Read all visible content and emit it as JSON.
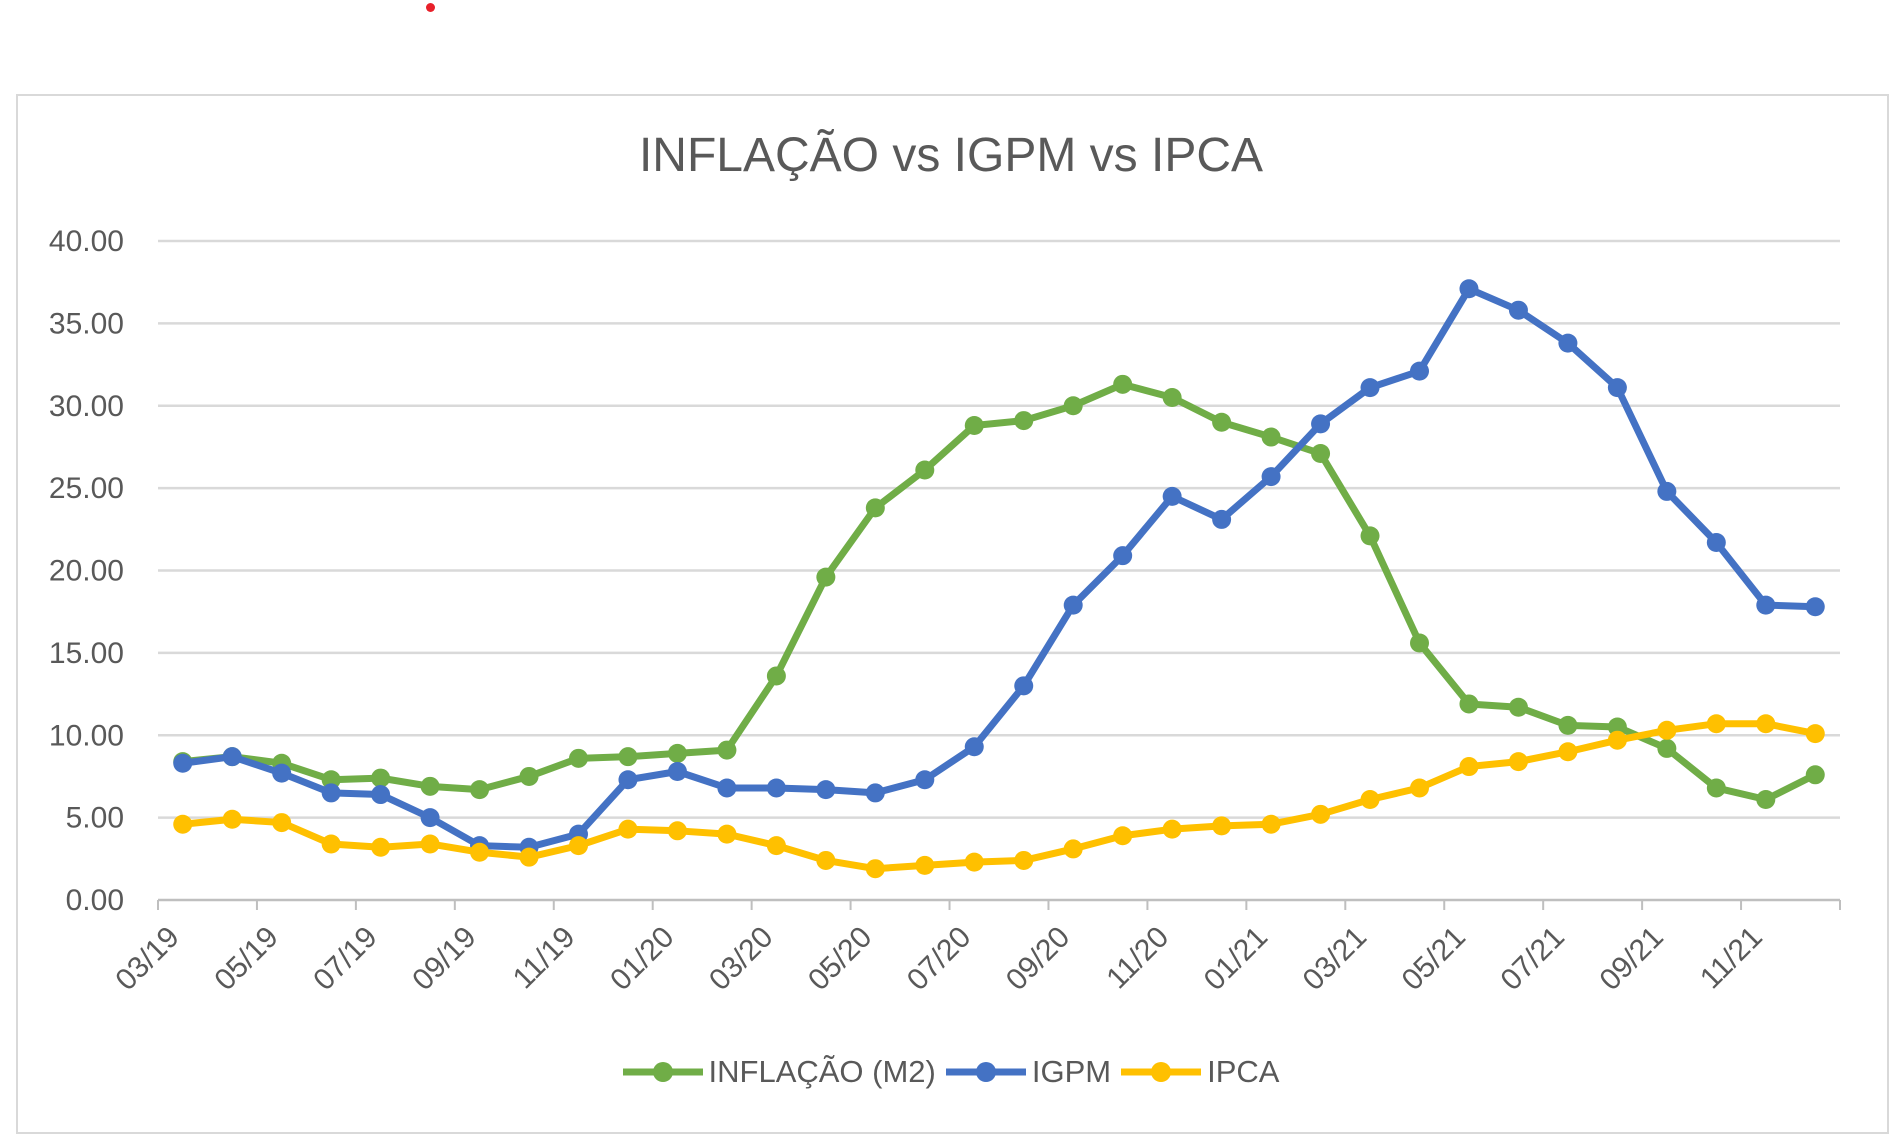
{
  "chart_data": {
    "type": "line",
    "title": "INFLAÇÃO vs IGPM vs IPCA",
    "xlabel": "",
    "ylabel": "",
    "categories": [
      "03/19",
      "04/19",
      "05/19",
      "06/19",
      "07/19",
      "08/19",
      "09/19",
      "10/19",
      "11/19",
      "12/19",
      "01/20",
      "02/20",
      "03/20",
      "04/20",
      "05/20",
      "06/20",
      "07/20",
      "08/20",
      "09/20",
      "10/20",
      "11/20",
      "12/20",
      "01/21",
      "02/21",
      "03/21",
      "04/21",
      "05/21",
      "06/21",
      "07/21",
      "08/21",
      "09/21",
      "10/21",
      "11/21",
      "12/21"
    ],
    "x_tick_labels": [
      "03/19",
      "05/19",
      "07/19",
      "09/19",
      "11/19",
      "01/20",
      "03/20",
      "05/20",
      "07/20",
      "09/20",
      "11/20",
      "01/21",
      "03/21",
      "05/21",
      "07/21",
      "09/21",
      "11/21"
    ],
    "y_tick_labels": [
      "0.00",
      "5.00",
      "10.00",
      "15.00",
      "20.00",
      "25.00",
      "30.00",
      "35.00",
      "40.00"
    ],
    "ylim": [
      0,
      40
    ],
    "grid": "horizontal",
    "legend": "bottom",
    "series": [
      {
        "name": "INFLAÇÃO (M2)",
        "color": "#70ad47",
        "values": [
          8.4,
          8.7,
          8.3,
          7.3,
          7.4,
          6.9,
          6.7,
          7.5,
          8.6,
          8.7,
          8.9,
          9.1,
          13.6,
          19.6,
          23.8,
          26.1,
          28.8,
          29.1,
          30.0,
          31.3,
          30.5,
          29.0,
          28.1,
          27.1,
          22.1,
          15.6,
          11.9,
          11.7,
          10.6,
          10.5,
          9.2,
          6.8,
          6.1,
          7.6
        ]
      },
      {
        "name": "IGPM",
        "color": "#4472c4",
        "values": [
          8.3,
          8.7,
          7.7,
          6.5,
          6.4,
          5.0,
          3.3,
          3.2,
          4.0,
          7.3,
          7.8,
          6.8,
          6.8,
          6.7,
          6.5,
          7.3,
          9.3,
          13.0,
          17.9,
          20.9,
          24.5,
          23.1,
          25.7,
          28.9,
          31.1,
          32.1,
          37.1,
          35.8,
          33.8,
          31.1,
          24.8,
          21.7,
          17.9,
          17.8
        ]
      },
      {
        "name": "IPCA",
        "color": "#ffc000",
        "values": [
          4.6,
          4.9,
          4.7,
          3.4,
          3.2,
          3.4,
          2.9,
          2.6,
          3.3,
          4.3,
          4.2,
          4.0,
          3.3,
          2.4,
          1.9,
          2.1,
          2.3,
          2.4,
          3.1,
          3.9,
          4.3,
          4.5,
          4.6,
          5.2,
          6.1,
          6.8,
          8.1,
          8.4,
          9.0,
          9.7,
          10.3,
          10.7,
          10.7,
          10.1
        ]
      }
    ]
  }
}
